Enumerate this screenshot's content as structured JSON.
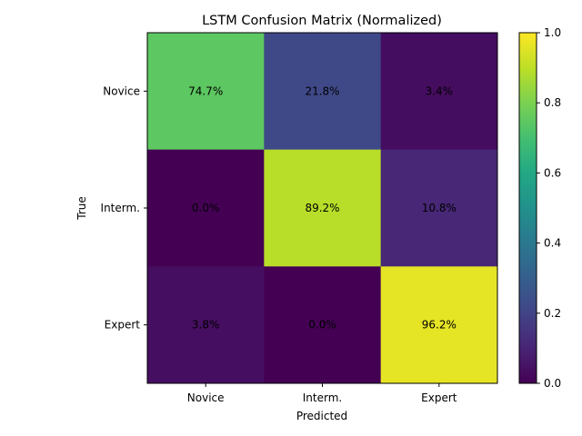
{
  "chart_data": {
    "type": "heatmap",
    "title": "LSTM Confusion Matrix (Normalized)",
    "xlabel": "Predicted",
    "ylabel": "True",
    "x_categories": [
      "Novice",
      "Interm.",
      "Expert"
    ],
    "y_categories": [
      "Novice",
      "Interm.",
      "Expert"
    ],
    "values": [
      [
        0.747,
        0.218,
        0.034
      ],
      [
        0.0,
        0.892,
        0.108
      ],
      [
        0.038,
        0.0,
        0.962
      ]
    ],
    "cell_labels": [
      [
        "74.7%",
        "21.8%",
        "3.4%"
      ],
      [
        "0.0%",
        "89.2%",
        "10.8%"
      ],
      [
        "3.8%",
        "0.0%",
        "96.2%"
      ]
    ],
    "colormap": "viridis",
    "colorbar": {
      "range": [
        0.0,
        1.0
      ],
      "tick_values": [
        0.0,
        0.2,
        0.4,
        0.6,
        0.8,
        1.0
      ],
      "tick_labels": [
        "0.0",
        "0.2",
        "0.4",
        "0.6",
        "0.8",
        "1.0"
      ]
    },
    "grid": false,
    "legend": "colorbar-right"
  }
}
